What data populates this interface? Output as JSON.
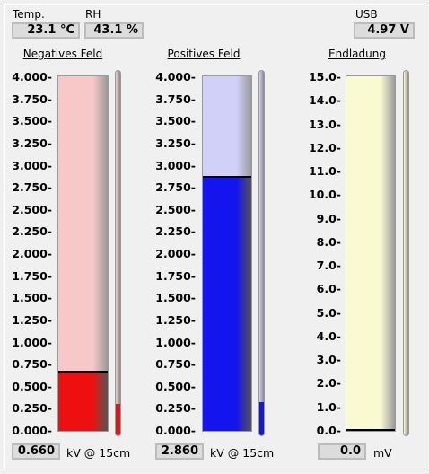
{
  "header": {
    "temp_label": "Temp.",
    "temp_value": "23.1 °C",
    "rh_label": "RH",
    "rh_value": "43.1 %",
    "usb_label": "USB",
    "usb_value": "4.97 V"
  },
  "gauges": [
    {
      "title": "Negatives Feld",
      "ticks": [
        "4.000",
        "3.750",
        "3.500",
        "3.250",
        "3.000",
        "2.750",
        "2.500",
        "2.250",
        "2.000",
        "1.750",
        "1.500",
        "1.250",
        "1.000",
        "0.750",
        "0.500",
        "0.250",
        "0.000"
      ],
      "range": [
        0,
        4
      ],
      "value": 0.66,
      "readout": "0.660",
      "unit": "kV @ 15cm",
      "bg_color": "#f8c8c8",
      "fill_color": "#ee1010",
      "thin_level": 0.085
    },
    {
      "title": "Positives Feld",
      "ticks": [
        "4.000",
        "3.750",
        "3.500",
        "3.250",
        "3.000",
        "2.750",
        "2.500",
        "2.250",
        "2.000",
        "1.750",
        "1.500",
        "1.250",
        "1.000",
        "0.750",
        "0.500",
        "0.250",
        "0.000"
      ],
      "range": [
        0,
        4
      ],
      "value": 2.86,
      "readout": "2.860",
      "unit": "kV @ 15cm",
      "bg_color": "#d0d0f8",
      "fill_color": "#1414ee",
      "thin_level": 0.09
    },
    {
      "title": "Endladung",
      "ticks": [
        "15.0",
        "14.0",
        "13.0",
        "12.0",
        "11.0",
        "10.0",
        "9.0",
        "8.0",
        "7.0",
        "6.0",
        "5.0",
        "4.0",
        "3.0",
        "2.0",
        "1.0",
        "0.0"
      ],
      "range": [
        0,
        15
      ],
      "value": 0.0,
      "readout": "0.0",
      "unit": "mV",
      "bg_color": "#fafad0",
      "fill_color": "#e8e800",
      "thin_level": 0.0
    }
  ]
}
